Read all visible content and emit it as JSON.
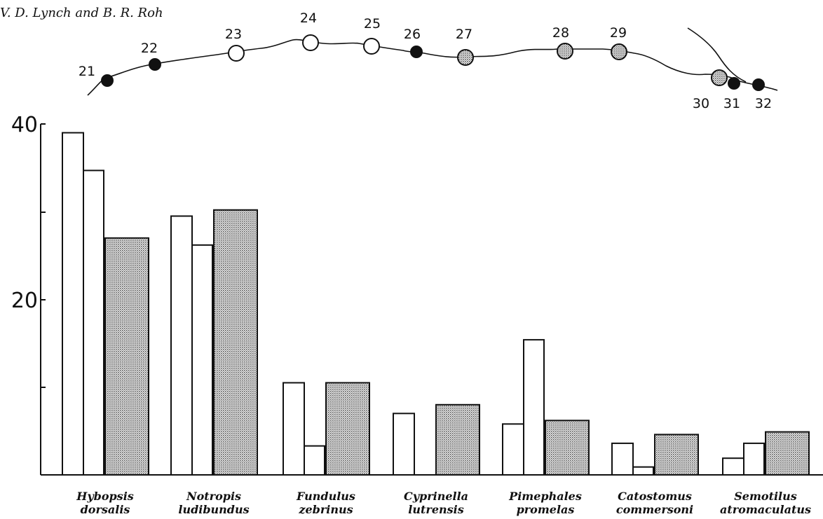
{
  "header": {
    "author": "V. D. Lynch and B. R. Roh"
  },
  "map": {
    "sites": [
      {
        "label": "21",
        "type": "filled"
      },
      {
        "label": "22",
        "type": "filled"
      },
      {
        "label": "23",
        "type": "open"
      },
      {
        "label": "24",
        "type": "open"
      },
      {
        "label": "25",
        "type": "open"
      },
      {
        "label": "26",
        "type": "filled"
      },
      {
        "label": "27",
        "type": "stippled"
      },
      {
        "label": "28",
        "type": "stippled"
      },
      {
        "label": "29",
        "type": "stippled"
      },
      {
        "label": "30",
        "type": "stippled"
      },
      {
        "label": "31",
        "type": "filled"
      },
      {
        "label": "32",
        "type": "filled"
      }
    ]
  },
  "chart_data": {
    "type": "bar",
    "categories": [
      {
        "genus": "Hybopsis",
        "species": "dorsalis"
      },
      {
        "genus": "Notropis",
        "species": "ludibundus"
      },
      {
        "genus": "Fundulus",
        "species": "zebrinus"
      },
      {
        "genus": "Cyprinella",
        "species": "lutrensis"
      },
      {
        "genus": "Pimephales",
        "species": "promelas"
      },
      {
        "genus": "Catostomus",
        "species": "commersoni"
      },
      {
        "genus": "Semotilus",
        "species": "atromaculatus"
      }
    ],
    "series": [
      {
        "fill": "open",
        "values": [
          39,
          29.5,
          10.5,
          7,
          5.8,
          3.6,
          1.9
        ]
      },
      {
        "fill": "open",
        "values": [
          34.7,
          26.2,
          3.3,
          null,
          15.4,
          0.9,
          3.6
        ]
      },
      {
        "fill": "stippled",
        "values": [
          27,
          30.2,
          10.5,
          8,
          6.2,
          4.6,
          4.9
        ]
      }
    ],
    "yticks": [
      "40",
      "20"
    ],
    "ylim": [
      0,
      40
    ],
    "colors": {
      "stipple": "#b8b8b8",
      "ink": "#111111"
    }
  }
}
